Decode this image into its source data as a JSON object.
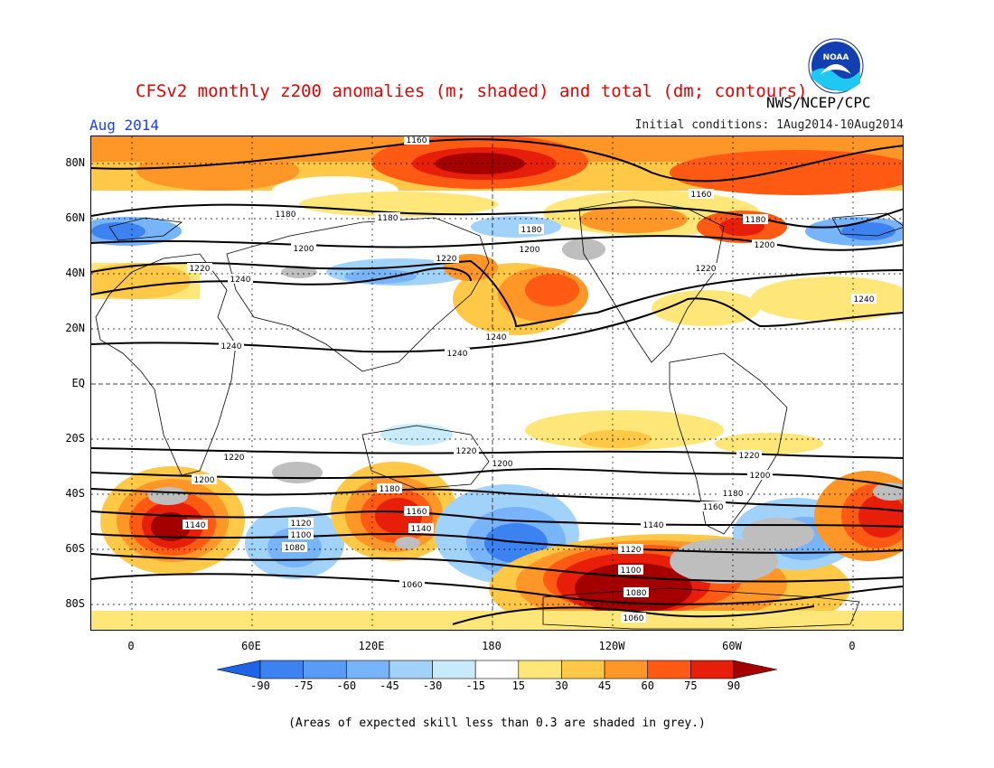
{
  "header": {
    "title": "CFSv2 monthly z200 anomalies (m; shaded) and total (dm; contours)",
    "month": "Aug 2014",
    "initial_conditions": "Initial conditions: 1Aug2014-10Aug2014",
    "agency": "NWS/NCEP/CPC",
    "logo_text": "NOAA"
  },
  "axes": {
    "lat_labels": [
      "80N",
      "60N",
      "40N",
      "20N",
      "EQ",
      "20S",
      "40S",
      "60S",
      "80S"
    ],
    "lon_labels": [
      "0",
      "60E",
      "120E",
      "180",
      "120W",
      "60W",
      "0"
    ]
  },
  "contour_labels": [
    "1160",
    "1180",
    "1200",
    "1220",
    "1240",
    "1240",
    "1240",
    "1240",
    "1220",
    "1200",
    "1180",
    "1160",
    "1140",
    "1120",
    "1100",
    "1080",
    "1060",
    "1060",
    "1140",
    "1120",
    "1100",
    "1080",
    "1200",
    "1220",
    "1180",
    "1160",
    "1220",
    "1200",
    "1180",
    "1200",
    "1220",
    "1240",
    "1160",
    "1180",
    "1140",
    "1180",
    "1200",
    "1220"
  ],
  "colorbar": {
    "ticks": [
      "-90",
      "-75",
      "-60",
      "-45",
      "-30",
      "-15",
      "15",
      "30",
      "45",
      "60",
      "75",
      "90"
    ],
    "colors": [
      "#1e64e6",
      "#3c82f0",
      "#5a9bf5",
      "#78b4fa",
      "#a0d2fa",
      "#c8ebfa",
      "#ffffff",
      "#ffe678",
      "#ffc846",
      "#ff9628",
      "#ff5a14",
      "#e61e0a",
      "#a50000"
    ]
  },
  "footnote": "(Areas of expected skill less than 0.3 are shaded in grey.)"
}
